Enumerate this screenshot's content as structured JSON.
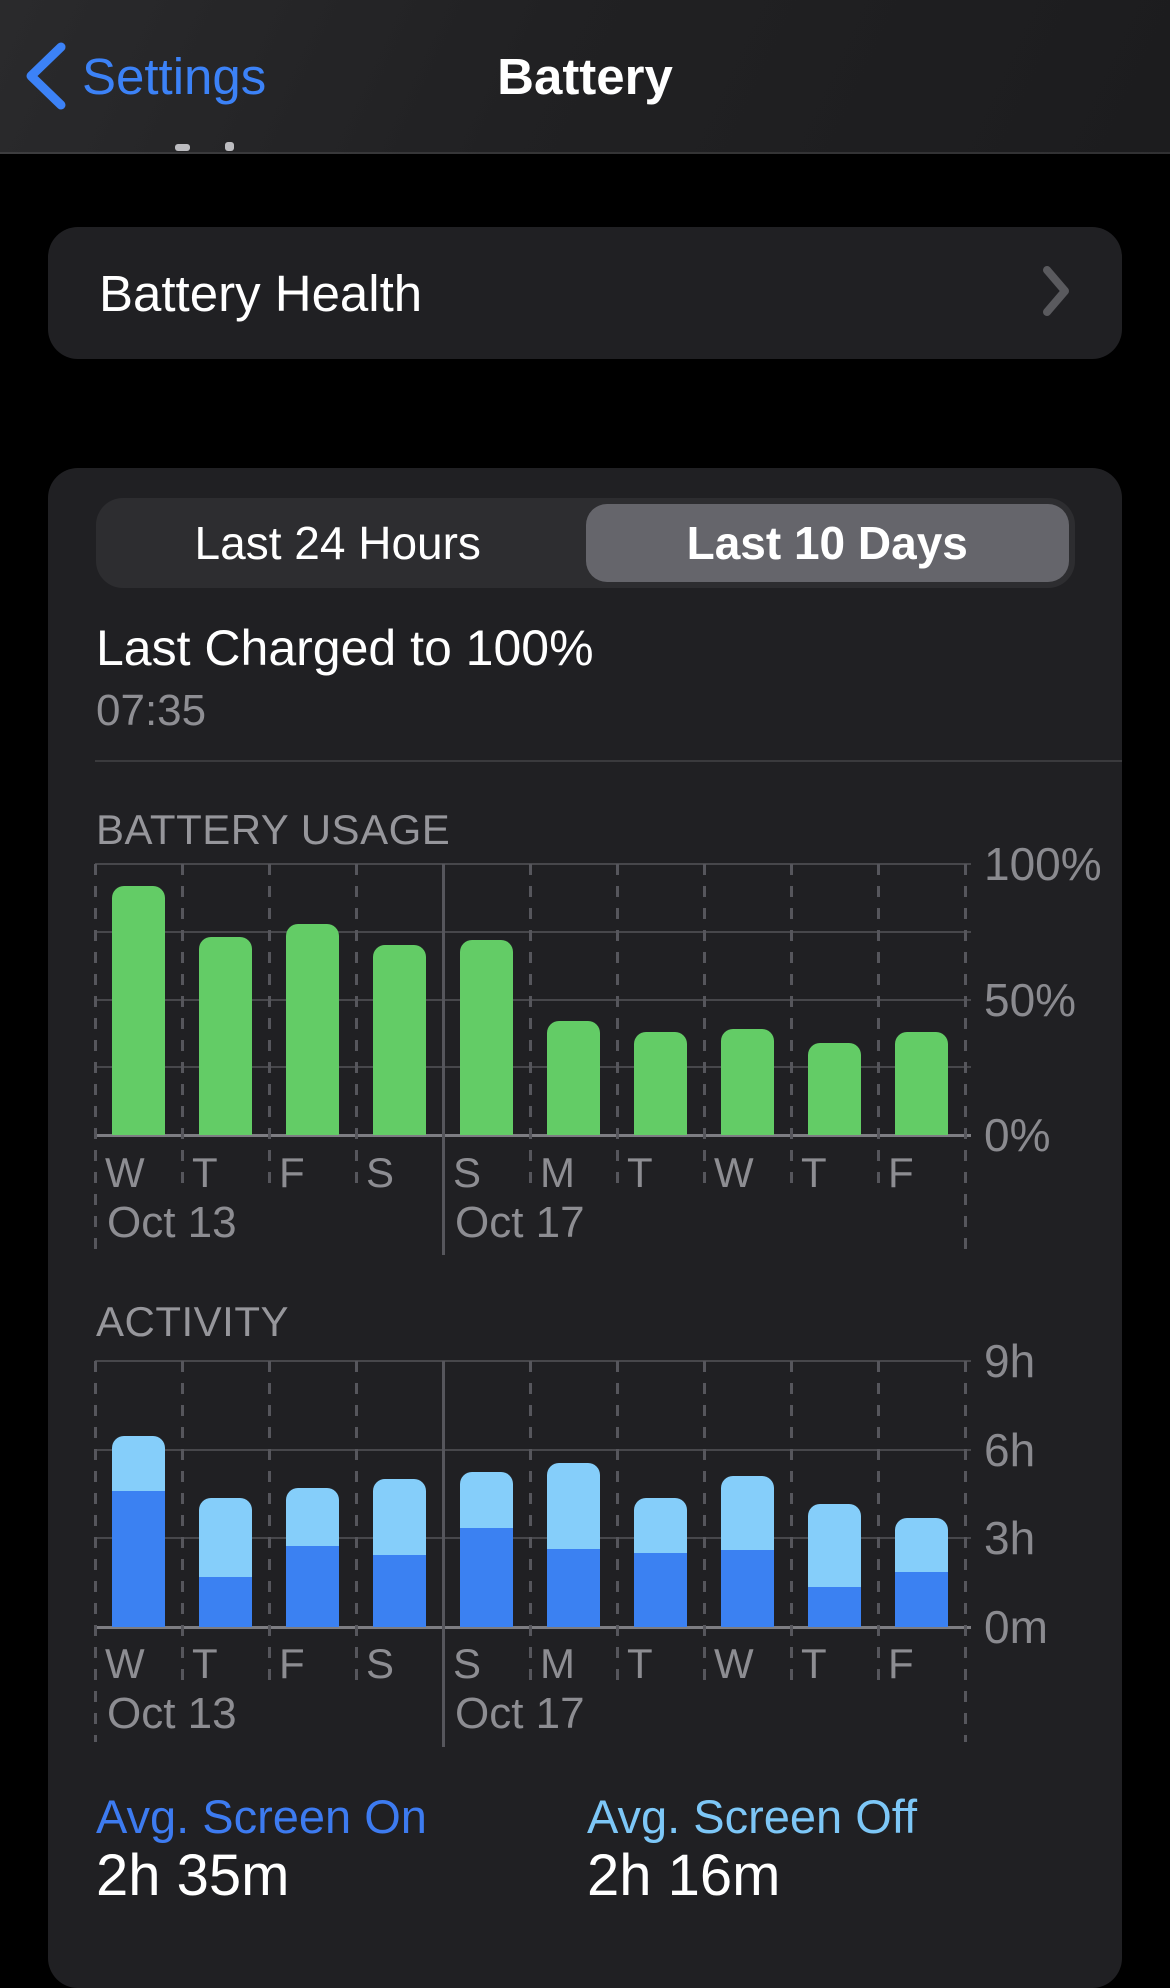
{
  "nav": {
    "back_label": "Settings",
    "title": "Battery"
  },
  "battery_health_row": {
    "label": "Battery Health"
  },
  "segmented": {
    "options": [
      {
        "label": "Last 24 Hours",
        "selected": false
      },
      {
        "label": "Last 10 Days",
        "selected": true
      }
    ]
  },
  "last_charged": {
    "title": "Last Charged to 100%",
    "time": "07:35"
  },
  "avg_stats": [
    {
      "label": "Avg. Screen On",
      "value": "2h 35m"
    },
    {
      "label": "Avg. Screen Off",
      "value": "2h 16m"
    }
  ],
  "colors": {
    "nav_blue": "#3c82f7",
    "card_bg": "#202023",
    "segment_selected": "#65656b",
    "green_bar": "#63cc66",
    "screen_on_blue": "#3b81f2",
    "screen_off_blue": "#85cefa",
    "avg_on_label": "#3d7bf0",
    "avg_off_label": "#7dc7f7",
    "chart_text_gray": "#8d8d92",
    "gridline": "#47474b",
    "baseline": "#7d7d82"
  },
  "chart_data": [
    {
      "id": "battery_usage",
      "type": "bar",
      "title": "BATTERY USAGE",
      "categories": [
        "W",
        "T",
        "F",
        "S",
        "S",
        "M",
        "T",
        "W",
        "T",
        "F"
      ],
      "values": [
        92,
        73,
        78,
        70,
        72,
        42,
        38,
        39,
        34,
        38
      ],
      "unit": "%",
      "ylim": [
        0,
        100
      ],
      "yticks": [
        {
          "label": "100%",
          "value": 100
        },
        {
          "label": "50%",
          "value": 50
        },
        {
          "label": "0%",
          "value": 0
        }
      ],
      "gridline_values": [
        100,
        75,
        50,
        25
      ],
      "date_markers": [
        {
          "slot": 0,
          "label": "Oct 13"
        },
        {
          "slot": 4,
          "label": "Oct 17"
        }
      ],
      "bar_color": "#63cc66",
      "legend": "none",
      "grid": true
    },
    {
      "id": "activity",
      "type": "stacked_bar",
      "title": "ACTIVITY",
      "categories": [
        "W",
        "T",
        "F",
        "S",
        "S",
        "M",
        "T",
        "W",
        "T",
        "F"
      ],
      "series": [
        {
          "name": "Screen On",
          "color": "#3b81f2",
          "values": [
            4.6,
            1.7,
            2.75,
            2.45,
            3.35,
            2.65,
            2.5,
            2.6,
            1.35,
            1.85
          ]
        },
        {
          "name": "Screen Off",
          "color": "#85cefa",
          "values": [
            1.85,
            2.65,
            1.95,
            2.55,
            1.9,
            2.9,
            1.85,
            2.5,
            2.8,
            1.85
          ]
        }
      ],
      "unit": "h",
      "ylim": [
        0,
        9
      ],
      "yticks": [
        {
          "label": "9h",
          "value": 9
        },
        {
          "label": "6h",
          "value": 6
        },
        {
          "label": "3h",
          "value": 3
        },
        {
          "label": "0m",
          "value": 0
        }
      ],
      "gridline_values": [
        9,
        6,
        3
      ],
      "date_markers": [
        {
          "slot": 0,
          "label": "Oct 13"
        },
        {
          "slot": 4,
          "label": "Oct 17"
        }
      ],
      "legend": "none",
      "grid": true
    }
  ]
}
